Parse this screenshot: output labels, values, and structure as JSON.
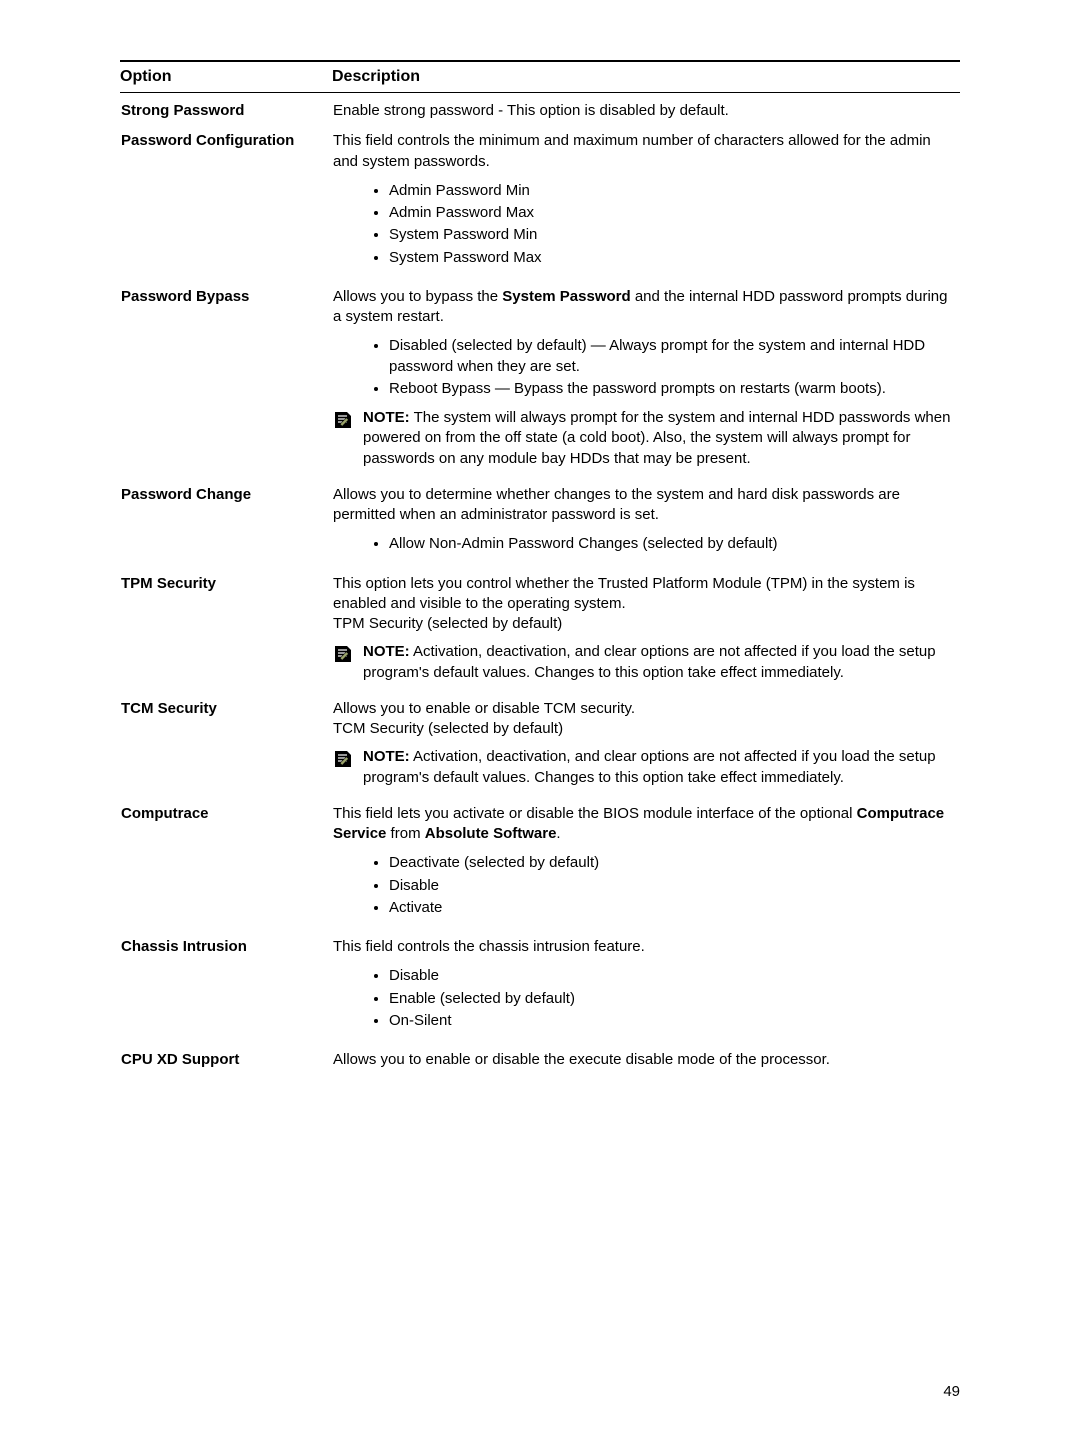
{
  "header": {
    "option": "Option",
    "description": "Description"
  },
  "noteIcon": {
    "bg": "#000000",
    "fg": "#ffffff",
    "pencil": "#9aa36a"
  },
  "rows": [
    {
      "option": "Strong Password",
      "desc": "Enable strong password - This option is disabled by default."
    },
    {
      "option": "Password Configuration",
      "desc": "This field controls the minimum and maximum number of characters allowed for the admin and system passwords.",
      "bullets": [
        "Admin Password Min",
        "Admin Password Max",
        "System Password Min",
        "System Password Max"
      ]
    },
    {
      "option": "Password Bypass",
      "desc_pre": "Allows you to bypass the ",
      "desc_bold": "System Password",
      "desc_post": " and the internal HDD password prompts during a system restart.",
      "bullets": [
        "Disabled (selected by default) — Always prompt for the system and internal HDD password when they are set.",
        "Reboot Bypass — Bypass the password prompts on restarts (warm boots)."
      ],
      "note_label": "NOTE:",
      "note": " The system will always prompt for the system and internal HDD passwords when powered on from the off state (a cold boot). Also, the system will always prompt for passwords on any module bay HDDs that may be present."
    },
    {
      "option": "Password Change",
      "desc": "Allows you to determine whether changes to the system and hard disk passwords are permitted when an administrator password is set.",
      "bullets": [
        "Allow Non-Admin Password Changes (selected by default)"
      ]
    },
    {
      "option": "TPM Security",
      "desc": "This option lets you control whether the Trusted Platform Module (TPM) in the system is enabled and visible to the operating system.",
      "extra_line": "TPM Security (selected by default)",
      "note_label": "NOTE:",
      "note": " Activation, deactivation, and clear options are not affected if you load the setup program's default values. Changes to this option take effect immediately."
    },
    {
      "option": "TCM Security",
      "desc": "Allows you to enable or disable TCM security.",
      "extra_line": "TCM Security (selected by default)",
      "note_label": "NOTE:",
      "note": " Activation, deactivation, and clear options are not affected if you load the setup program's default values. Changes to this option take effect immediately."
    },
    {
      "option": "Computrace",
      "desc_pre": "This field lets you activate or disable the BIOS module interface of the optional ",
      "desc_bold": "Computrace Service",
      "desc_mid": " from ",
      "desc_bold2": "Absolute Software",
      "desc_post": ".",
      "bullets": [
        "Deactivate (selected by default)",
        "Disable",
        "Activate"
      ]
    },
    {
      "option": "Chassis Intrusion",
      "desc": "This field controls the chassis intrusion feature.",
      "bullets": [
        "Disable",
        "Enable (selected by default)",
        "On-Silent"
      ]
    },
    {
      "option": "CPU XD Support",
      "desc": "Allows you to enable or disable the execute disable mode of the processor."
    }
  ],
  "pageNumber": "49"
}
